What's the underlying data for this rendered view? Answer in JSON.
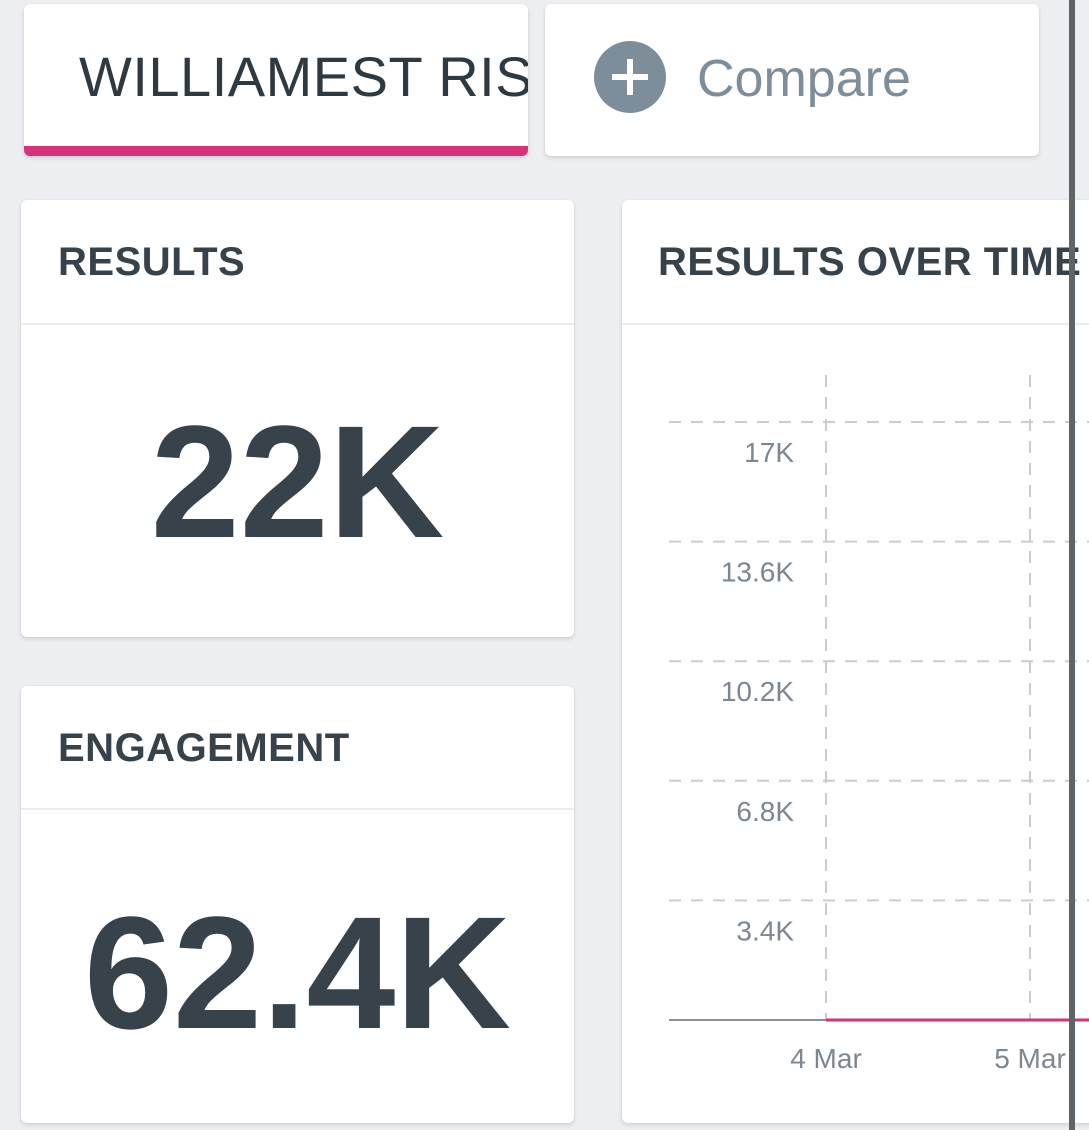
{
  "tabs": {
    "query": {
      "label": "WILLIAMEST RISE I"
    },
    "compare": {
      "label": "Compare",
      "icon": "plus-circle-icon"
    }
  },
  "colors": {
    "accent": "#d6337a",
    "text": "#37424b",
    "muted": "#7d8d99",
    "background": "#eceef1"
  },
  "metrics": {
    "results": {
      "title": "RESULTS",
      "value": "22K"
    },
    "engagement": {
      "title": "ENGAGEMENT",
      "value": "62.4K"
    }
  },
  "results_over_time": {
    "title": "RESULTS OVER TIME"
  },
  "chart_data": {
    "type": "line",
    "title": "RESULTS OVER TIME",
    "xlabel": "",
    "ylabel": "",
    "y_ticks": [
      "17K",
      "13.6K",
      "10.2K",
      "6.8K",
      "3.4K"
    ],
    "y_tick_values": [
      17000,
      13600,
      10200,
      6800,
      3400
    ],
    "x_ticks": [
      "4 Mar",
      "5 Mar"
    ],
    "ylim": [
      0,
      17000
    ],
    "grid": true,
    "series": [
      {
        "color": "#d6337a",
        "x": [
          "4 Mar",
          "5 Mar"
        ],
        "values": [
          0,
          0
        ]
      }
    ]
  }
}
